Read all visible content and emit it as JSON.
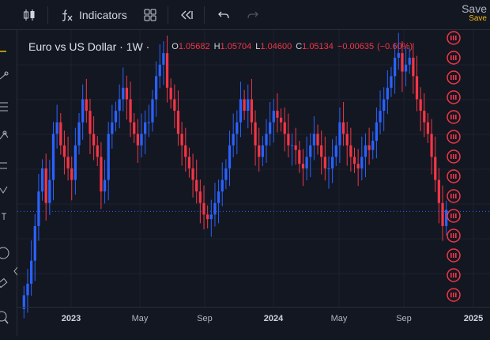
{
  "toolbar": {
    "chart_type_icon": "candles-icon",
    "indicators_icon": "fx-icon",
    "indicators_label": "Indicators",
    "layout_icon": "grid-layout-icon",
    "replay_icon": "rewind-icon",
    "undo_icon": "undo-icon",
    "redo_icon": "redo-icon",
    "save_label": "Save",
    "save_sub": "Save"
  },
  "leftbar": {
    "icons": [
      "crosshair-icon",
      "trendline-icon",
      "fib-icon",
      "pattern-icon",
      "prediction-icon",
      "brush-icon",
      "text-icon",
      "emoji-icon",
      "ruler-icon",
      "zoom-icon"
    ]
  },
  "chart": {
    "symbol": "Euro vs US Dollar · 1W ·",
    "ohlc": {
      "o_label": "O",
      "o": "1.05682",
      "h_label": "H",
      "h": "1.05704",
      "l_label": "L",
      "l": "1.04600",
      "c_label": "C",
      "c": "1.05134"
    },
    "change": "−0.00635",
    "change_pct": "(−0.60%)",
    "colors": {
      "up": "#2962ff",
      "down": "#f23645",
      "background": "#131722",
      "grid": "#1e222d",
      "price_line": "#2962ff"
    },
    "x_ticks": [
      {
        "label": "2023",
        "bold": true
      },
      {
        "label": "May",
        "bold": false
      },
      {
        "label": "Sep",
        "bold": false
      },
      {
        "label": "2024",
        "bold": true
      },
      {
        "label": "May",
        "bold": false
      },
      {
        "label": "Sep",
        "bold": false
      },
      {
        "label": "2025",
        "bold": true
      }
    ],
    "event_marker_icon": "dividend-event-icon"
  },
  "chart_data": {
    "type": "candlestick",
    "title": "Euro vs US Dollar · 1W",
    "xlabel": "",
    "ylabel": "",
    "x_range": [
      "2022-10",
      "2025-01"
    ],
    "y_range": [
      1.01,
      1.13
    ],
    "grid": true,
    "current_price": 1.05134,
    "close_series": [
      1.015,
      1.02,
      1.03,
      1.045,
      1.06,
      1.07,
      1.055,
      1.065,
      1.085,
      1.09,
      1.08,
      1.075,
      1.07,
      1.065,
      1.08,
      1.09,
      1.1,
      1.095,
      1.085,
      1.08,
      1.075,
      1.06,
      1.065,
      1.085,
      1.09,
      1.095,
      1.1,
      1.105,
      1.1,
      1.09,
      1.085,
      1.08,
      1.085,
      1.09,
      1.09,
      1.1,
      1.11,
      1.115,
      1.12,
      1.105,
      1.1,
      1.095,
      1.085,
      1.08,
      1.075,
      1.07,
      1.065,
      1.06,
      1.055,
      1.05,
      1.048,
      1.05,
      1.055,
      1.06,
      1.065,
      1.07,
      1.08,
      1.085,
      1.09,
      1.1,
      1.095,
      1.1,
      1.09,
      1.08,
      1.075,
      1.08,
      1.085,
      1.09,
      1.095,
      1.092,
      1.09,
      1.085,
      1.08,
      1.08,
      1.078,
      1.072,
      1.07,
      1.075,
      1.08,
      1.085,
      1.08,
      1.075,
      1.07,
      1.07,
      1.075,
      1.08,
      1.09,
      1.085,
      1.08,
      1.075,
      1.072,
      1.07,
      1.075,
      1.08,
      1.078,
      1.082,
      1.09,
      1.095,
      1.1,
      1.105,
      1.11,
      1.118,
      1.12,
      1.112,
      1.115,
      1.118,
      1.11,
      1.1,
      1.095,
      1.09,
      1.085,
      1.075,
      1.065,
      1.055,
      1.045,
      1.052
    ]
  }
}
